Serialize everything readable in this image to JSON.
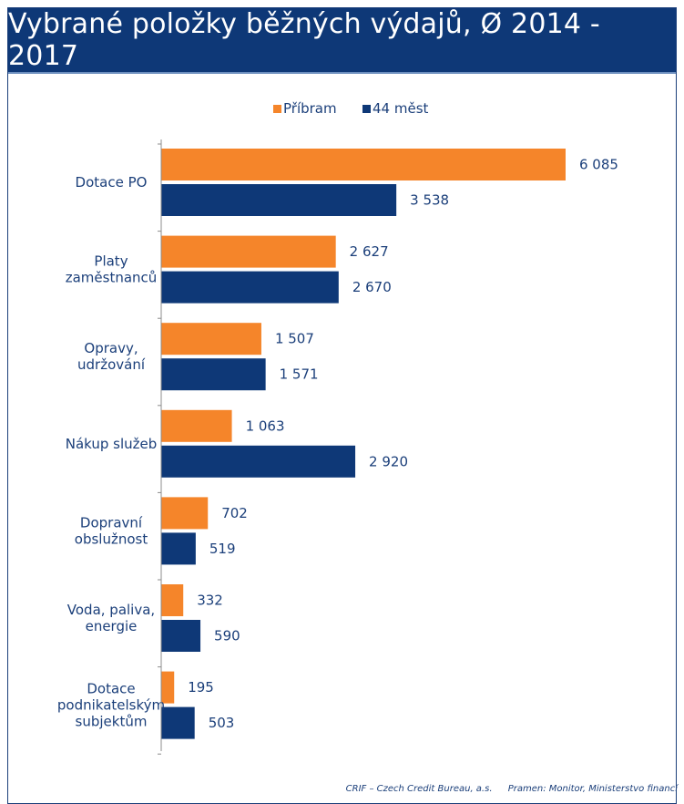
{
  "title": "Vybrané položky běžných výdajů, Ø 2014 - 2017",
  "footer": {
    "company": "CRIF – Czech Credit Bureau, a.s.",
    "source": "Pramen: Monitor, Ministerstvo financí"
  },
  "colors": {
    "header": "#0e3877",
    "pribram": "#f5852a",
    "mest": "#0e3877",
    "text": "#1b3f7a"
  },
  "chart_data": {
    "type": "bar",
    "orientation": "horizontal",
    "legend_position": "top-center",
    "grid": false,
    "xlim": [
      0,
      6500
    ],
    "categories": [
      [
        "Dotace PO"
      ],
      [
        "Platy",
        "zaměstnanců"
      ],
      [
        "Opravy,",
        "udržování"
      ],
      [
        "Nákup služeb"
      ],
      [
        "Dopravní",
        "obslužnost"
      ],
      [
        "Voda, paliva,",
        "energie"
      ],
      [
        "Dotace",
        "podnikatelským",
        "subjektům"
      ]
    ],
    "series": [
      {
        "name": "Příbram",
        "color": "#f5852a",
        "values": [
          6085,
          2627,
          1507,
          1063,
          702,
          332,
          195
        ],
        "labels": [
          "6 085",
          "2 627",
          "1 507",
          "1 063",
          "702",
          "332",
          "195"
        ]
      },
      {
        "name": "44 měst",
        "color": "#0e3877",
        "values": [
          3538,
          2670,
          1571,
          2920,
          519,
          590,
          503
        ],
        "labels": [
          "3 538",
          "2 670",
          "1 571",
          "2 920",
          "519",
          "590",
          "503"
        ]
      }
    ]
  }
}
